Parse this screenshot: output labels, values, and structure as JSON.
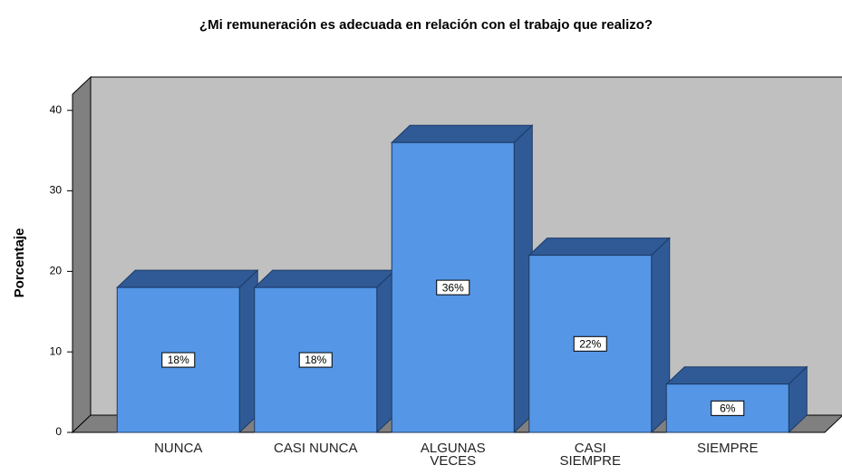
{
  "chart_data": {
    "type": "bar",
    "title": "¿Mi remuneración es adecuada en relación con el trabajo que realizo?",
    "y_label": "Porcentaje",
    "categories": [
      "NUNCA",
      "CASI NUNCA",
      "ALGUNAS VECES",
      "CASI SIEMPRE",
      "SIEMPRE"
    ],
    "values": [
      18,
      18,
      36,
      22,
      6
    ],
    "value_labels": [
      "18%",
      "18%",
      "36%",
      "22%",
      "6%"
    ],
    "color": "#5596e6",
    "ylim": [
      0,
      42
    ],
    "yticks": [
      0,
      10,
      20,
      30,
      40
    ]
  }
}
